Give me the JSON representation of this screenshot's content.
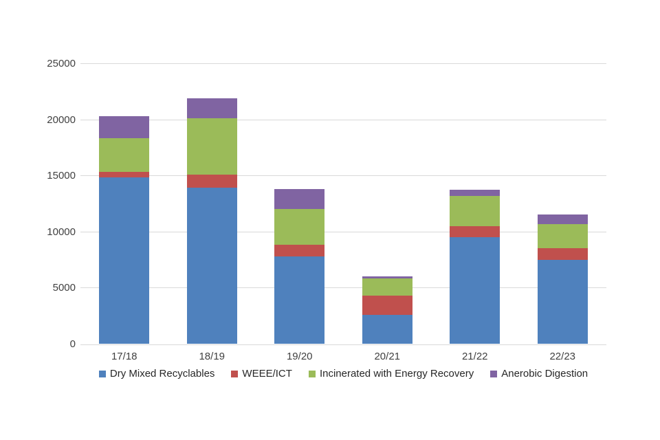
{
  "chart_data": {
    "type": "bar",
    "stacked": true,
    "title": "",
    "xlabel": "",
    "ylabel": "",
    "categories": [
      "17/18",
      "18/19",
      "19/20",
      "20/21",
      "21/22",
      "22/23"
    ],
    "series": [
      {
        "name": "Dry Mixed Recyclables",
        "color": "#4F81BD",
        "values": [
          14800,
          13900,
          7800,
          2600,
          9500,
          7500
        ]
      },
      {
        "name": "WEEE/ICT",
        "color": "#C0504D",
        "values": [
          500,
          1200,
          1000,
          1700,
          1000,
          1000
        ]
      },
      {
        "name": "Incinerated with Energy Recovery",
        "color": "#9BBB59",
        "values": [
          3000,
          5000,
          3200,
          1550,
          2700,
          2150
        ]
      },
      {
        "name": "Anerobic Digestion",
        "color": "#8064A2",
        "values": [
          2000,
          1800,
          1800,
          150,
          550,
          900
        ]
      }
    ],
    "ylim": [
      0,
      25000
    ],
    "ytick_interval": 5000,
    "yticks": [
      "0",
      "5000",
      "10000",
      "15000",
      "20000",
      "25000"
    ],
    "grid": true,
    "legend_position": "bottom",
    "colors": {
      "gridline": "#D9D9D9",
      "axis_text": "#404040",
      "legend_text": "#262626",
      "background": "#FFFFFF"
    }
  }
}
